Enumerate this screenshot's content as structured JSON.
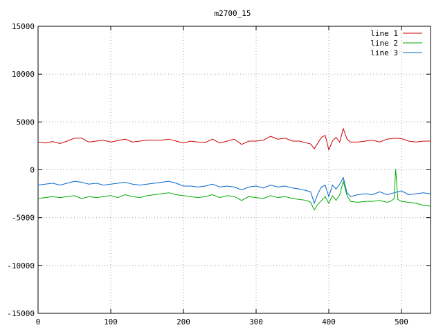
{
  "chart_data": {
    "type": "line",
    "title": "m2700_15",
    "xlabel": "",
    "ylabel": "",
    "xlim": [
      0,
      540
    ],
    "ylim": [
      -15000,
      15000
    ],
    "xticks": [
      0,
      100,
      200,
      300,
      400,
      500
    ],
    "yticks": [
      15000,
      10000,
      5000,
      0,
      -5000,
      -10000,
      -15000
    ],
    "grid": true,
    "legend_position": "top-right",
    "series": [
      {
        "name": "line 1",
        "color": "#cc0000",
        "x": [
          0,
          10,
          20,
          30,
          40,
          50,
          60,
          70,
          80,
          90,
          100,
          110,
          120,
          130,
          140,
          150,
          160,
          170,
          180,
          190,
          200,
          210,
          220,
          230,
          240,
          250,
          260,
          270,
          280,
          290,
          300,
          310,
          320,
          330,
          340,
          350,
          360,
          370,
          375,
          380,
          385,
          390,
          395,
          400,
          405,
          410,
          415,
          420,
          425,
          430,
          440,
          450,
          460,
          470,
          480,
          490,
          500,
          510,
          520,
          530,
          540
        ],
        "y": [
          2900,
          2800,
          2950,
          2750,
          3000,
          3300,
          3300,
          2900,
          3000,
          3100,
          2900,
          3050,
          3200,
          2900,
          3000,
          3100,
          3100,
          3100,
          3200,
          3000,
          2800,
          3000,
          2900,
          2850,
          3200,
          2800,
          3000,
          3200,
          2650,
          3000,
          3000,
          3100,
          3500,
          3200,
          3300,
          3000,
          3000,
          2800,
          2700,
          2200,
          2800,
          3400,
          3600,
          2100,
          3000,
          3400,
          2900,
          4300,
          3200,
          2900,
          2900,
          3000,
          3100,
          2900,
          3200,
          3300,
          3250,
          3000,
          2900,
          3000,
          3000
        ]
      },
      {
        "name": "line 2",
        "color": "#00aa00",
        "x": [
          0,
          10,
          20,
          30,
          40,
          50,
          60,
          70,
          80,
          90,
          100,
          110,
          120,
          130,
          140,
          150,
          160,
          170,
          180,
          190,
          200,
          210,
          220,
          230,
          240,
          250,
          260,
          270,
          280,
          290,
          300,
          310,
          320,
          330,
          340,
          350,
          360,
          370,
          375,
          380,
          385,
          390,
          395,
          400,
          405,
          410,
          415,
          420,
          425,
          430,
          440,
          450,
          460,
          470,
          480,
          485,
          490,
          492,
          495,
          500,
          510,
          520,
          530,
          540
        ],
        "y": [
          -3000,
          -2900,
          -2800,
          -2900,
          -2800,
          -2700,
          -3000,
          -2800,
          -2900,
          -2800,
          -2700,
          -2900,
          -2600,
          -2800,
          -2900,
          -2700,
          -2600,
          -2500,
          -2400,
          -2600,
          -2700,
          -2800,
          -2900,
          -2800,
          -2600,
          -2900,
          -2700,
          -2800,
          -3200,
          -2800,
          -2900,
          -3000,
          -2700,
          -2900,
          -2800,
          -3000,
          -3100,
          -3200,
          -3400,
          -4200,
          -3600,
          -3200,
          -2800,
          -3500,
          -2700,
          -3200,
          -2600,
          -1200,
          -2700,
          -3300,
          -3400,
          -3300,
          -3300,
          -3200,
          -3400,
          -3300,
          -3000,
          100,
          -3100,
          -3300,
          -3400,
          -3500,
          -3700,
          -3800
        ]
      },
      {
        "name": "line 3",
        "color": "#0066cc",
        "x": [
          0,
          10,
          20,
          30,
          40,
          50,
          60,
          70,
          80,
          90,
          100,
          110,
          120,
          130,
          140,
          150,
          160,
          170,
          180,
          190,
          200,
          210,
          220,
          230,
          240,
          250,
          260,
          270,
          280,
          290,
          300,
          310,
          320,
          330,
          340,
          350,
          360,
          370,
          375,
          380,
          385,
          390,
          395,
          400,
          405,
          410,
          415,
          420,
          425,
          430,
          440,
          450,
          460,
          470,
          480,
          490,
          500,
          510,
          520,
          530,
          540
        ],
        "y": [
          -1600,
          -1500,
          -1400,
          -1600,
          -1400,
          -1200,
          -1300,
          -1500,
          -1400,
          -1600,
          -1500,
          -1400,
          -1300,
          -1500,
          -1600,
          -1500,
          -1400,
          -1300,
          -1200,
          -1400,
          -1700,
          -1700,
          -1800,
          -1700,
          -1500,
          -1800,
          -1700,
          -1800,
          -2100,
          -1800,
          -1700,
          -1900,
          -1600,
          -1800,
          -1700,
          -1900,
          -2000,
          -2200,
          -2300,
          -3500,
          -2500,
          -1800,
          -1600,
          -2800,
          -1600,
          -2000,
          -1500,
          -800,
          -2400,
          -2800,
          -2600,
          -2500,
          -2600,
          -2300,
          -2600,
          -2400,
          -2200,
          -2600,
          -2500,
          -2400,
          -2500
        ]
      }
    ]
  }
}
